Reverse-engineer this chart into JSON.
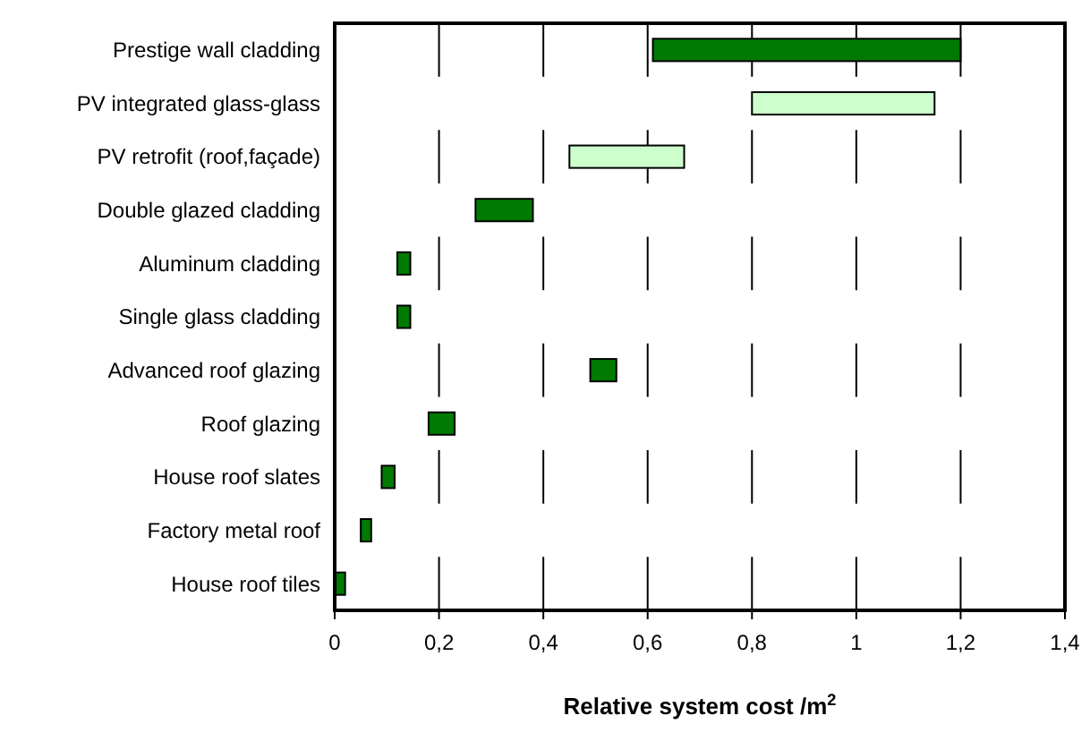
{
  "chart_data": {
    "type": "bar",
    "orientation": "horizontal",
    "xlabel": "Relative system cost  /m$^{2}$",
    "categories": [
      "Prestige wall cladding",
      "PV integrated glass-glass",
      "PV retrofit (roof,façade)",
      "Double glazed cladding",
      "Aluminum cladding",
      "Single glass cladding",
      "Advanced roof glazing",
      "Roof glazing",
      "House roof slates",
      "Factory metal roof",
      "House roof tiles"
    ],
    "base": [
      0.61,
      0.8,
      0.45,
      0.27,
      0.12,
      0.12,
      0.49,
      0.18,
      0.09,
      0.05,
      0
    ],
    "values": [
      0.59,
      0.35,
      0.22,
      0.11,
      0.025,
      0.025,
      0.05,
      0.05,
      0.025,
      0.02,
      0.02
    ],
    "colors": [
      "#007a00",
      "#ccffcc",
      "#ccffcc",
      "#007a00",
      "#007a00",
      "#007a00",
      "#007a00",
      "#007a00",
      "#007a00",
      "#007a00",
      "#007a00"
    ],
    "xlim": [
      0,
      1.4
    ],
    "xticks": [
      {
        "value": 0,
        "label": "0"
      },
      {
        "value": 0.2,
        "label": "0,2"
      },
      {
        "value": 0.4,
        "label": "0,4"
      },
      {
        "value": 0.6,
        "label": "0,6"
      },
      {
        "value": 0.8,
        "label": "0,8"
      },
      {
        "value": 1,
        "label": "1"
      },
      {
        "value": 1.2,
        "label": "1,2"
      },
      {
        "value": 1.4,
        "label": "1,4"
      }
    ],
    "grid": "x"
  }
}
